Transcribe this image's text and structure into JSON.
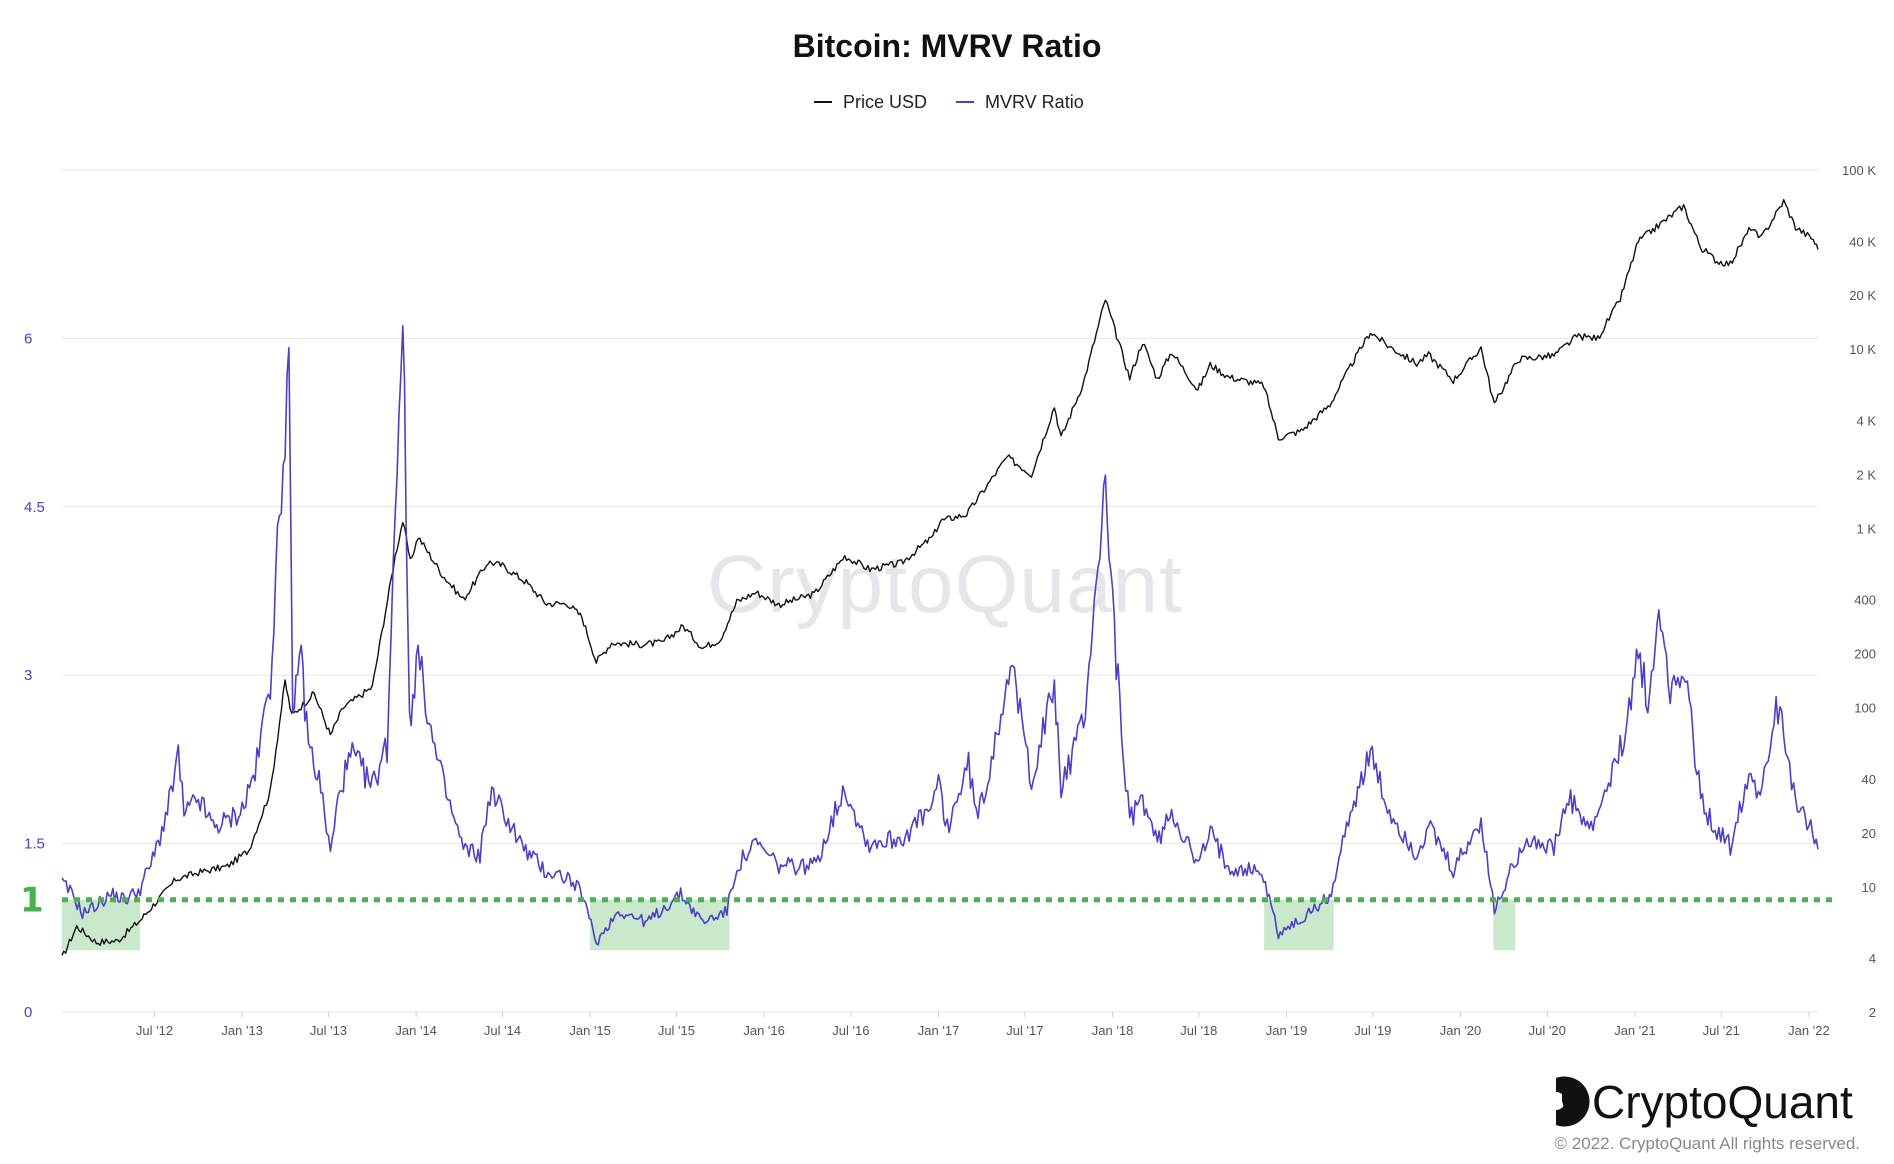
{
  "chart_data": {
    "type": "line",
    "title": "Bitcoin: MVRV Ratio",
    "legend": {
      "placement": "top-center",
      "entries": [
        "Price USD",
        "MVRV Ratio"
      ]
    },
    "colors": {
      "price": "#111111",
      "mvrv": "#4b40c8",
      "reference": "#4caf50",
      "shade": "#c9e8cc",
      "grid": "#e6e6e6"
    },
    "y_left": {
      "label": "",
      "ticks": [
        "0",
        "1.5",
        "3",
        "4.5",
        "6"
      ],
      "range": [
        0,
        7.5
      ]
    },
    "y_right": {
      "label": "",
      "scale": "log",
      "ticks": [
        "2",
        "4",
        "10",
        "20",
        "40",
        "100",
        "200",
        "400",
        "1 K",
        "2 K",
        "4 K",
        "10 K",
        "20 K",
        "40 K",
        "100 K"
      ],
      "range": [
        2,
        100000
      ]
    },
    "x_ticks": [
      "Jul '12",
      "Jan '13",
      "Jul '13",
      "Jan '14",
      "Jul '14",
      "Jan '15",
      "Jul '15",
      "Jan '16",
      "Jul '16",
      "Jan '17",
      "Jul '17",
      "Jan '18",
      "Jul '18",
      "Jan '19",
      "Jul '19",
      "Jan '20",
      "Jul '20",
      "Jan '21",
      "Jul '21",
      "Jan '22"
    ],
    "x_range": [
      "2011-12-20",
      "2022-01-20"
    ],
    "reference_line": {
      "value": 1,
      "label": "1",
      "style": "dotted"
    },
    "shaded_periods": [
      [
        "2011-12-20",
        "2012-06-01"
      ],
      [
        "2015-01-01",
        "2015-10-20"
      ],
      [
        "2018-11-15",
        "2019-04-10"
      ],
      [
        "2020-03-10",
        "2020-04-25"
      ]
    ],
    "series": [
      {
        "name": "Price USD",
        "axis": "right",
        "points": [
          [
            "2011-12-20",
            4
          ],
          [
            "2012-01-20",
            6
          ],
          [
            "2012-03-01",
            4.9
          ],
          [
            "2012-04-15",
            5
          ],
          [
            "2012-06-01",
            6.5
          ],
          [
            "2012-08-15",
            11
          ],
          [
            "2012-10-01",
            12
          ],
          [
            "2012-12-01",
            13
          ],
          [
            "2013-01-15",
            16
          ],
          [
            "2013-03-01",
            34
          ],
          [
            "2013-04-01",
            140
          ],
          [
            "2013-04-15",
            90
          ],
          [
            "2013-06-01",
            120
          ],
          [
            "2013-07-05",
            70
          ],
          [
            "2013-08-01",
            100
          ],
          [
            "2013-10-01",
            130
          ],
          [
            "2013-11-18",
            700
          ],
          [
            "2013-12-04",
            1100
          ],
          [
            "2013-12-20",
            650
          ],
          [
            "2014-01-05",
            900
          ],
          [
            "2014-02-25",
            550
          ],
          [
            "2014-04-10",
            400
          ],
          [
            "2014-06-01",
            650
          ],
          [
            "2014-07-01",
            620
          ],
          [
            "2014-08-20",
            500
          ],
          [
            "2014-10-01",
            380
          ],
          [
            "2014-11-15",
            380
          ],
          [
            "2014-12-15",
            320
          ],
          [
            "2015-01-14",
            180
          ],
          [
            "2015-02-15",
            230
          ],
          [
            "2015-04-15",
            225
          ],
          [
            "2015-06-01",
            230
          ],
          [
            "2015-07-15",
            285
          ],
          [
            "2015-08-25",
            215
          ],
          [
            "2015-10-01",
            240
          ],
          [
            "2015-11-05",
            390
          ],
          [
            "2015-12-15",
            440
          ],
          [
            "2016-02-01",
            375
          ],
          [
            "2016-04-15",
            430
          ],
          [
            "2016-06-18",
            700
          ],
          [
            "2016-08-10",
            590
          ],
          [
            "2016-10-15",
            640
          ],
          [
            "2016-12-20",
            900
          ],
          [
            "2017-01-05",
            1100
          ],
          [
            "2017-03-01",
            1200
          ],
          [
            "2017-05-25",
            2500
          ],
          [
            "2017-07-15",
            2000
          ],
          [
            "2017-09-01",
            4800
          ],
          [
            "2017-09-15",
            3200
          ],
          [
            "2017-11-01",
            6500
          ],
          [
            "2017-12-17",
            19000
          ],
          [
            "2018-02-06",
            6900
          ],
          [
            "2018-03-05",
            11000
          ],
          [
            "2018-04-05",
            6800
          ],
          [
            "2018-05-05",
            9700
          ],
          [
            "2018-06-29",
            5900
          ],
          [
            "2018-07-25",
            8200
          ],
          [
            "2018-09-01",
            7000
          ],
          [
            "2018-11-14",
            6300
          ],
          [
            "2018-12-15",
            3200
          ],
          [
            "2019-02-01",
            3500
          ],
          [
            "2019-04-02",
            4900
          ],
          [
            "2019-05-15",
            8000
          ],
          [
            "2019-06-26",
            12500
          ],
          [
            "2019-08-01",
            10500
          ],
          [
            "2019-10-01",
            8300
          ],
          [
            "2019-10-26",
            9300
          ],
          [
            "2019-12-17",
            6700
          ],
          [
            "2020-02-13",
            10200
          ],
          [
            "2020-03-12",
            4900
          ],
          [
            "2020-05-01",
            8800
          ],
          [
            "2020-07-15",
            9200
          ],
          [
            "2020-09-01",
            11800
          ],
          [
            "2020-10-15",
            11500
          ],
          [
            "2020-12-01",
            19000
          ],
          [
            "2021-01-08",
            40000
          ],
          [
            "2021-02-15",
            48000
          ],
          [
            "2021-04-13",
            63000
          ],
          [
            "2021-05-19",
            37000
          ],
          [
            "2021-06-22",
            31000
          ],
          [
            "2021-07-20",
            30000
          ],
          [
            "2021-09-01",
            48000
          ],
          [
            "2021-09-21",
            41000
          ],
          [
            "2021-11-09",
            67000
          ],
          [
            "2021-12-04",
            48000
          ],
          [
            "2022-01-10",
            41000
          ],
          [
            "2022-01-20",
            36000
          ]
        ]
      },
      {
        "name": "MVRV Ratio",
        "axis": "left",
        "points": [
          [
            "2011-12-20",
            1.15
          ],
          [
            "2012-01-10",
            1.05
          ],
          [
            "2012-02-01",
            0.88
          ],
          [
            "2012-03-01",
            0.95
          ],
          [
            "2012-04-01",
            1.05
          ],
          [
            "2012-05-01",
            1.0
          ],
          [
            "2012-06-01",
            1.1
          ],
          [
            "2012-07-01",
            1.4
          ],
          [
            "2012-08-01",
            1.85
          ],
          [
            "2012-08-20",
            2.3
          ],
          [
            "2012-09-01",
            1.75
          ],
          [
            "2012-10-01",
            1.9
          ],
          [
            "2012-11-01",
            1.65
          ],
          [
            "2012-12-01",
            1.7
          ],
          [
            "2013-01-01",
            1.8
          ],
          [
            "2013-02-01",
            2.2
          ],
          [
            "2013-03-01",
            3.0
          ],
          [
            "2013-03-20",
            4.4
          ],
          [
            "2013-04-09",
            5.8
          ],
          [
            "2013-04-17",
            2.5
          ],
          [
            "2013-05-01",
            3.3
          ],
          [
            "2013-05-20",
            2.4
          ],
          [
            "2013-06-15",
            2.0
          ],
          [
            "2013-07-05",
            1.4
          ],
          [
            "2013-07-25",
            2.0
          ],
          [
            "2013-08-20",
            2.3
          ],
          [
            "2013-10-01",
            2.0
          ],
          [
            "2013-11-01",
            2.4
          ],
          [
            "2013-11-18",
            4.5
          ],
          [
            "2013-12-04",
            6.3
          ],
          [
            "2013-12-18",
            2.6
          ],
          [
            "2014-01-05",
            3.2
          ],
          [
            "2014-02-05",
            2.4
          ],
          [
            "2014-03-01",
            2.0
          ],
          [
            "2014-04-10",
            1.45
          ],
          [
            "2014-05-15",
            1.4
          ],
          [
            "2014-06-05",
            1.95
          ],
          [
            "2014-07-01",
            1.8
          ],
          [
            "2014-08-15",
            1.45
          ],
          [
            "2014-10-01",
            1.25
          ],
          [
            "2014-11-15",
            1.2
          ],
          [
            "2014-12-15",
            1.05
          ],
          [
            "2015-01-14",
            0.62
          ],
          [
            "2015-03-01",
            0.9
          ],
          [
            "2015-05-01",
            0.8
          ],
          [
            "2015-07-10",
            1.05
          ],
          [
            "2015-08-25",
            0.8
          ],
          [
            "2015-10-15",
            0.9
          ],
          [
            "2015-11-05",
            1.3
          ],
          [
            "2015-12-15",
            1.5
          ],
          [
            "2016-02-01",
            1.3
          ],
          [
            "2016-04-15",
            1.3
          ],
          [
            "2016-06-18",
            2.0
          ],
          [
            "2016-08-05",
            1.5
          ],
          [
            "2016-10-15",
            1.55
          ],
          [
            "2016-12-15",
            1.8
          ],
          [
            "2017-01-05",
            2.05
          ],
          [
            "2017-01-15",
            1.6
          ],
          [
            "2017-03-05",
            2.2
          ],
          [
            "2017-03-25",
            1.7
          ],
          [
            "2017-06-01",
            3.1
          ],
          [
            "2017-07-15",
            2.1
          ],
          [
            "2017-09-01",
            2.9
          ],
          [
            "2017-09-15",
            2.0
          ],
          [
            "2017-11-01",
            2.6
          ],
          [
            "2017-12-17",
            4.7
          ],
          [
            "2018-01-20",
            2.4
          ],
          [
            "2018-02-06",
            1.7
          ],
          [
            "2018-03-05",
            1.9
          ],
          [
            "2018-04-05",
            1.5
          ],
          [
            "2018-05-05",
            1.8
          ],
          [
            "2018-06-29",
            1.3
          ],
          [
            "2018-07-25",
            1.6
          ],
          [
            "2018-09-01",
            1.3
          ],
          [
            "2018-11-10",
            1.25
          ],
          [
            "2018-12-15",
            0.7
          ],
          [
            "2019-02-01",
            0.82
          ],
          [
            "2019-04-05",
            1.05
          ],
          [
            "2019-05-15",
            1.8
          ],
          [
            "2019-06-26",
            2.3
          ],
          [
            "2019-08-01",
            1.8
          ],
          [
            "2019-10-01",
            1.4
          ],
          [
            "2019-10-26",
            1.65
          ],
          [
            "2019-12-17",
            1.25
          ],
          [
            "2020-02-13",
            1.7
          ],
          [
            "2020-03-12",
            0.9
          ],
          [
            "2020-04-15",
            1.25
          ],
          [
            "2020-05-15",
            1.55
          ],
          [
            "2020-07-15",
            1.45
          ],
          [
            "2020-08-15",
            1.9
          ],
          [
            "2020-10-01",
            1.6
          ],
          [
            "2020-12-01",
            2.3
          ],
          [
            "2021-01-08",
            3.2
          ],
          [
            "2021-02-01",
            2.7
          ],
          [
            "2021-02-20",
            3.6
          ],
          [
            "2021-03-20",
            2.8
          ],
          [
            "2021-04-13",
            3.1
          ],
          [
            "2021-05-19",
            1.9
          ],
          [
            "2021-06-22",
            1.6
          ],
          [
            "2021-07-20",
            1.5
          ],
          [
            "2021-09-01",
            2.2
          ],
          [
            "2021-09-21",
            1.9
          ],
          [
            "2021-10-20",
            2.7
          ],
          [
            "2021-11-09",
            2.5
          ],
          [
            "2021-12-04",
            1.9
          ],
          [
            "2022-01-01",
            1.7
          ],
          [
            "2022-01-20",
            1.45
          ]
        ]
      }
    ]
  },
  "watermark": "CryptoQuant",
  "footer": {
    "brand": "CryptoQuant",
    "copyright": "© 2022. CryptoQuant All rights reserved."
  }
}
